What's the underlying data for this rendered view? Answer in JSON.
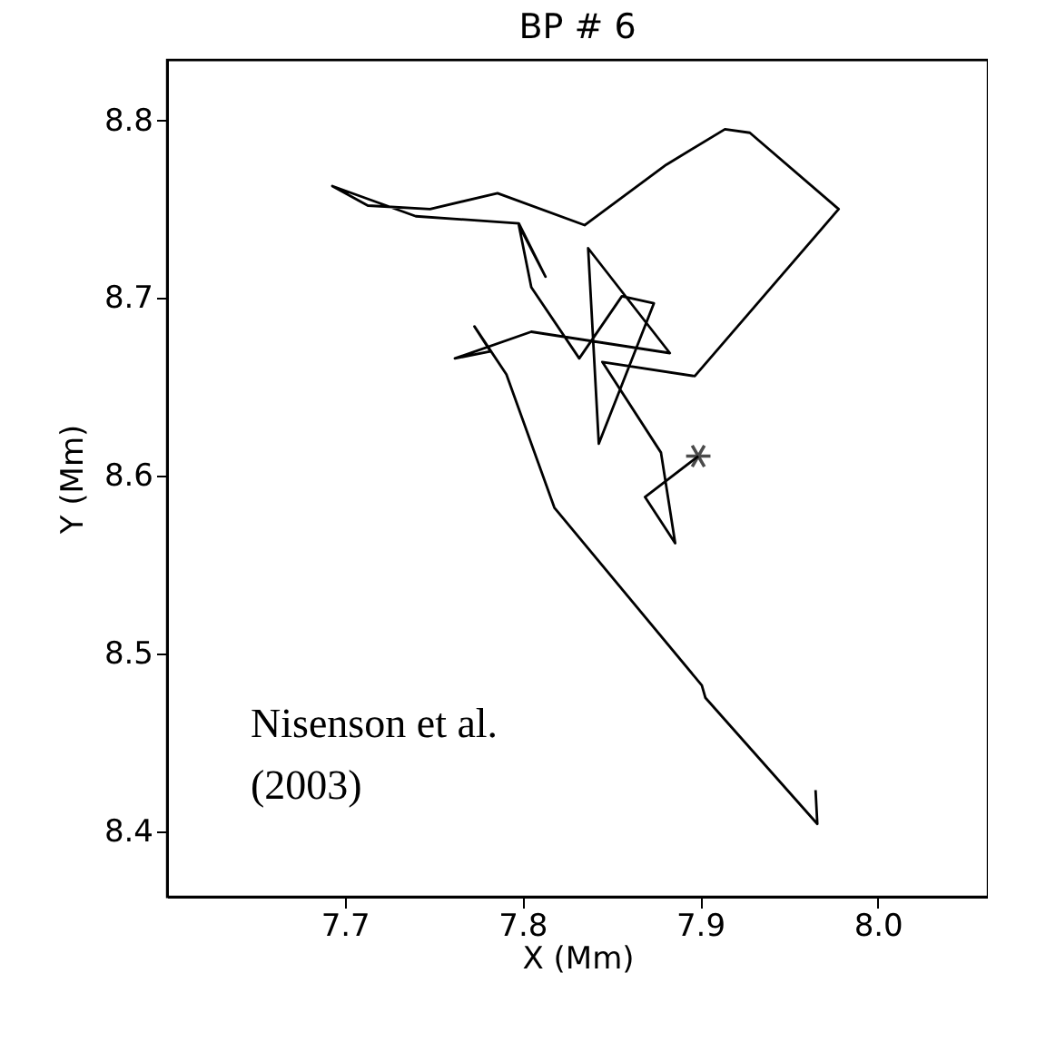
{
  "chart_data": {
    "type": "line",
    "title": "BP  #   6",
    "xlabel": "X (Mm)",
    "ylabel": "Y (Mm)",
    "xlim": [
      7.6,
      8.062
    ],
    "ylim": [
      8.363,
      8.834
    ],
    "xticks": [
      7.7,
      7.8,
      7.9,
      {
        "value": 8.0,
        "label": "8.0"
      }
    ],
    "yticks": [
      8.4,
      8.5,
      8.6,
      8.7,
      8.8
    ],
    "grid": false,
    "annotations": [
      "Nisenson et al. (2003)"
    ],
    "series": [
      {
        "color": "#000000",
        "marker": "none",
        "line_style": "solid",
        "x": [
          7.899,
          7.869,
          7.886,
          7.878,
          7.845,
          7.897,
          7.978,
          7.928,
          7.914,
          7.881,
          7.835,
          7.786,
          7.748,
          7.713,
          7.693,
          7.74,
          7.798,
          7.813,
          7.798,
          7.805,
          7.832,
          7.856,
          7.874,
          7.843,
          7.837,
          7.883,
          7.805,
          7.762,
          7.782,
          7.773,
          7.791,
          7.818,
          7.901,
          7.903,
          7.966,
          7.965
        ],
        "values": [
          8.611,
          8.588,
          8.562,
          8.613,
          8.664,
          8.656,
          8.75,
          8.793,
          8.795,
          8.775,
          8.741,
          8.759,
          8.75,
          8.752,
          8.763,
          8.746,
          8.742,
          8.712,
          8.741,
          8.706,
          8.666,
          8.701,
          8.697,
          8.618,
          8.728,
          8.669,
          8.681,
          8.666,
          8.67,
          8.684,
          8.657,
          8.582,
          8.482,
          8.475,
          8.404,
          8.423
        ]
      },
      {
        "type": "scatter",
        "color": "#000000",
        "marker": "cross",
        "x": [
          7.899
        ],
        "values": [
          8.611
        ]
      }
    ]
  }
}
